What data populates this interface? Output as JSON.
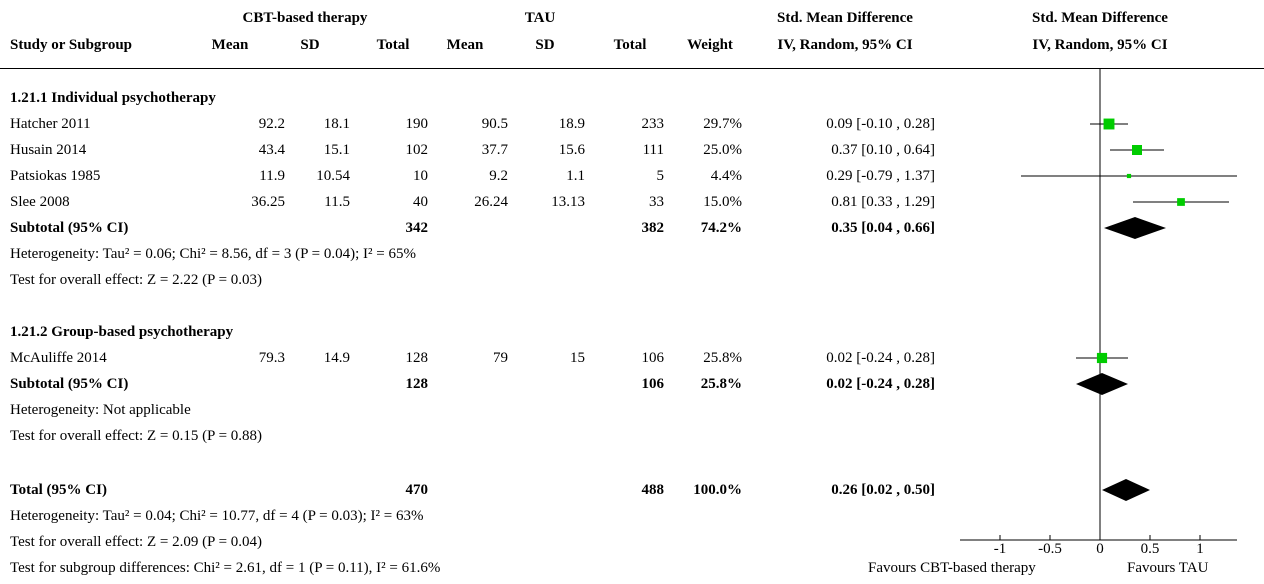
{
  "header": {
    "group1": "CBT-based therapy",
    "group2": "TAU",
    "effect_top": "Std. Mean Difference",
    "effect_sub": "IV, Random, 95% CI",
    "plot_top": "Std. Mean Difference",
    "plot_sub": "IV, Random, 95% CI",
    "study": "Study or Subgroup",
    "mean": "Mean",
    "sd": "SD",
    "total": "Total",
    "weight": "Weight"
  },
  "subgroup1": {
    "title": "1.21.1 Individual psychotherapy",
    "studies": [
      {
        "name": "Hatcher 2011",
        "m1": "92.2",
        "sd1": "18.1",
        "n1": "190",
        "m2": "90.5",
        "sd2": "18.9",
        "n2": "233",
        "weight": "29.7%",
        "ci": "0.09 [-0.10 , 0.28]"
      },
      {
        "name": "Husain 2014",
        "m1": "43.4",
        "sd1": "15.1",
        "n1": "102",
        "m2": "37.7",
        "sd2": "15.6",
        "n2": "111",
        "weight": "25.0%",
        "ci": "0.37 [0.10 , 0.64]"
      },
      {
        "name": "Patsiokas 1985",
        "m1": "11.9",
        "sd1": "10.54",
        "n1": "10",
        "m2": "9.2",
        "sd2": "1.1",
        "n2": "5",
        "weight": "4.4%",
        "ci": "0.29 [-0.79 , 1.37]"
      },
      {
        "name": "Slee 2008",
        "m1": "36.25",
        "sd1": "11.5",
        "n1": "40",
        "m2": "26.24",
        "sd2": "13.13",
        "n2": "33",
        "weight": "15.0%",
        "ci": "0.81 [0.33 , 1.29]"
      }
    ],
    "subtotal": {
      "label": "Subtotal (95% CI)",
      "n1": "342",
      "n2": "382",
      "weight": "74.2%",
      "ci": "0.35 [0.04 , 0.66]"
    },
    "heterogeneity": "Heterogeneity: Tau² = 0.06; Chi² = 8.56, df = 3 (P = 0.04); I² = 65%",
    "overall": "Test for overall effect: Z = 2.22 (P = 0.03)"
  },
  "subgroup2": {
    "title": "1.21.2 Group-based psychotherapy",
    "studies": [
      {
        "name": "McAuliffe 2014",
        "m1": "79.3",
        "sd1": "14.9",
        "n1": "128",
        "m2": "79",
        "sd2": "15",
        "n2": "106",
        "weight": "25.8%",
        "ci": "0.02 [-0.24 , 0.28]"
      }
    ],
    "subtotal": {
      "label": "Subtotal (95% CI)",
      "n1": "128",
      "n2": "106",
      "weight": "25.8%",
      "ci": "0.02 [-0.24 , 0.28]"
    },
    "heterogeneity": "Heterogeneity: Not applicable",
    "overall": "Test for overall effect: Z = 0.15 (P = 0.88)"
  },
  "total": {
    "label": "Total (95% CI)",
    "n1": "470",
    "n2": "488",
    "weight": "100.0%",
    "ci": "0.26 [0.02 , 0.50]"
  },
  "footer": {
    "heterogeneity": "Heterogeneity: Tau² = 0.04; Chi² = 10.77, df = 4 (P = 0.03); I² = 63%",
    "overall": "Test for overall effect: Z = 2.09 (P = 0.04)",
    "subgroup_diff": "Test for subgroup differences: Chi² = 2.61, df = 1 (P = 0.11), I² = 61.6%",
    "favours_left": "Favours CBT-based therapy",
    "favours_right": "Favours TAU"
  },
  "chart_data": {
    "type": "forest",
    "xlim": [
      -1,
      1
    ],
    "ticks": [
      "-1",
      "-0.5",
      "0",
      "0.5",
      "1"
    ],
    "tick_values": [
      -1,
      -0.5,
      0,
      0.5,
      1
    ],
    "square_color": "#00cc00",
    "studies": [
      {
        "name": "Hatcher 2011",
        "est": 0.09,
        "lo": -0.1,
        "hi": 0.28,
        "weight": 29.7
      },
      {
        "name": "Husain 2014",
        "est": 0.37,
        "lo": 0.1,
        "hi": 0.64,
        "weight": 25.0
      },
      {
        "name": "Patsiokas 1985",
        "est": 0.29,
        "lo": -0.79,
        "hi": 1.37,
        "weight": 4.4
      },
      {
        "name": "Slee 2008",
        "est": 0.81,
        "lo": 0.33,
        "hi": 1.29,
        "weight": 15.0
      },
      {
        "name": "McAuliffe 2014",
        "est": 0.02,
        "lo": -0.24,
        "hi": 0.28,
        "weight": 25.8
      }
    ],
    "diamonds": [
      {
        "name": "Subtotal 1.21.1",
        "est": 0.35,
        "lo": 0.04,
        "hi": 0.66
      },
      {
        "name": "Subtotal 1.21.2",
        "est": 0.02,
        "lo": -0.24,
        "hi": 0.28
      },
      {
        "name": "Total",
        "est": 0.26,
        "lo": 0.02,
        "hi": 0.5
      }
    ]
  }
}
